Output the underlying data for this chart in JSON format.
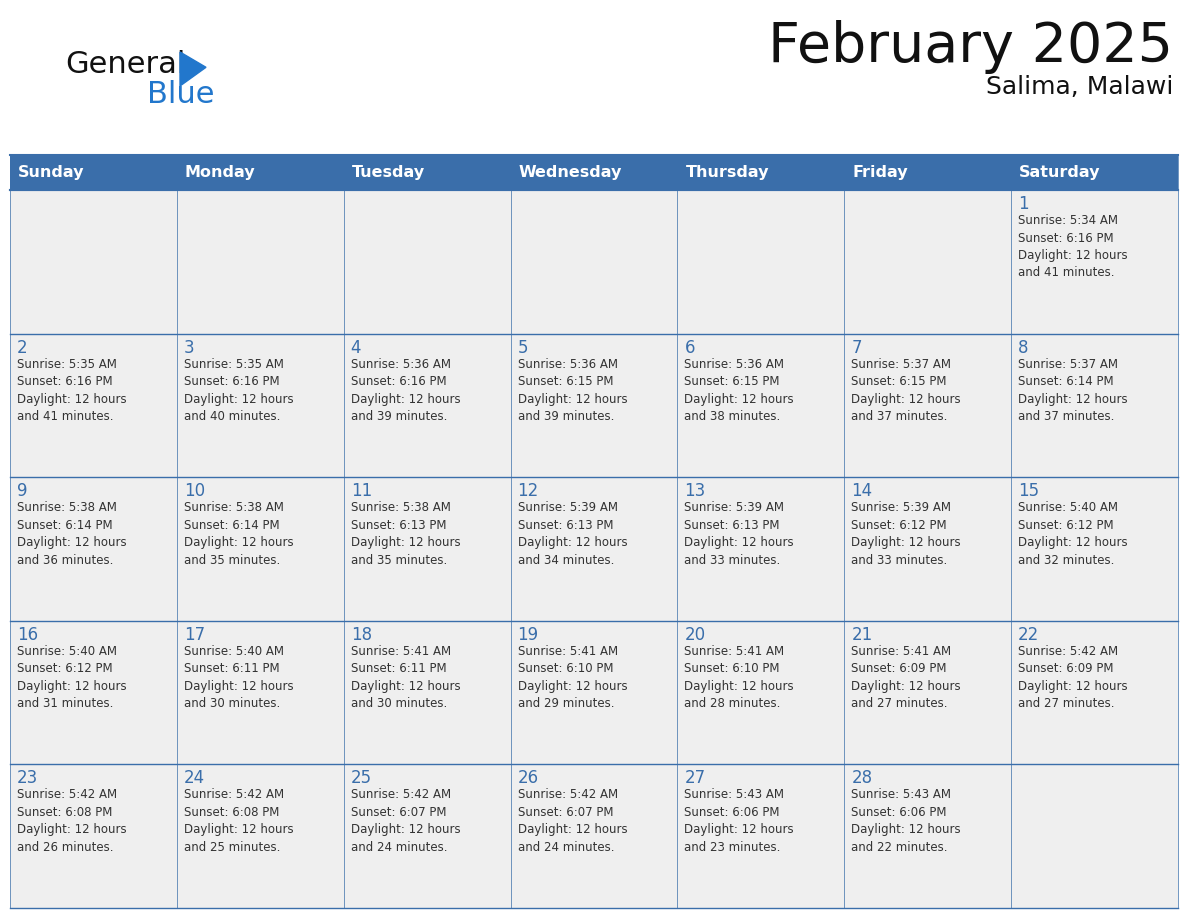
{
  "title": "February 2025",
  "subtitle": "Salima, Malawi",
  "days_of_week": [
    "Sunday",
    "Monday",
    "Tuesday",
    "Wednesday",
    "Thursday",
    "Friday",
    "Saturday"
  ],
  "header_bg": "#3A6EAA",
  "header_text": "#FFFFFF",
  "cell_bg": "#EFEFEF",
  "grid_line_color": "#3A6EAA",
  "day_number_color": "#3A6EAA",
  "text_color": "#333333",
  "title_color": "#111111",
  "logo_general_color": "#111111",
  "logo_blue_color": "#2277CC",
  "logo_triangle_color": "#2277CC",
  "weeks": [
    [
      {
        "day": null,
        "info": null
      },
      {
        "day": null,
        "info": null
      },
      {
        "day": null,
        "info": null
      },
      {
        "day": null,
        "info": null
      },
      {
        "day": null,
        "info": null
      },
      {
        "day": null,
        "info": null
      },
      {
        "day": 1,
        "info": "Sunrise: 5:34 AM\nSunset: 6:16 PM\nDaylight: 12 hours\nand 41 minutes."
      }
    ],
    [
      {
        "day": 2,
        "info": "Sunrise: 5:35 AM\nSunset: 6:16 PM\nDaylight: 12 hours\nand 41 minutes."
      },
      {
        "day": 3,
        "info": "Sunrise: 5:35 AM\nSunset: 6:16 PM\nDaylight: 12 hours\nand 40 minutes."
      },
      {
        "day": 4,
        "info": "Sunrise: 5:36 AM\nSunset: 6:16 PM\nDaylight: 12 hours\nand 39 minutes."
      },
      {
        "day": 5,
        "info": "Sunrise: 5:36 AM\nSunset: 6:15 PM\nDaylight: 12 hours\nand 39 minutes."
      },
      {
        "day": 6,
        "info": "Sunrise: 5:36 AM\nSunset: 6:15 PM\nDaylight: 12 hours\nand 38 minutes."
      },
      {
        "day": 7,
        "info": "Sunrise: 5:37 AM\nSunset: 6:15 PM\nDaylight: 12 hours\nand 37 minutes."
      },
      {
        "day": 8,
        "info": "Sunrise: 5:37 AM\nSunset: 6:14 PM\nDaylight: 12 hours\nand 37 minutes."
      }
    ],
    [
      {
        "day": 9,
        "info": "Sunrise: 5:38 AM\nSunset: 6:14 PM\nDaylight: 12 hours\nand 36 minutes."
      },
      {
        "day": 10,
        "info": "Sunrise: 5:38 AM\nSunset: 6:14 PM\nDaylight: 12 hours\nand 35 minutes."
      },
      {
        "day": 11,
        "info": "Sunrise: 5:38 AM\nSunset: 6:13 PM\nDaylight: 12 hours\nand 35 minutes."
      },
      {
        "day": 12,
        "info": "Sunrise: 5:39 AM\nSunset: 6:13 PM\nDaylight: 12 hours\nand 34 minutes."
      },
      {
        "day": 13,
        "info": "Sunrise: 5:39 AM\nSunset: 6:13 PM\nDaylight: 12 hours\nand 33 minutes."
      },
      {
        "day": 14,
        "info": "Sunrise: 5:39 AM\nSunset: 6:12 PM\nDaylight: 12 hours\nand 33 minutes."
      },
      {
        "day": 15,
        "info": "Sunrise: 5:40 AM\nSunset: 6:12 PM\nDaylight: 12 hours\nand 32 minutes."
      }
    ],
    [
      {
        "day": 16,
        "info": "Sunrise: 5:40 AM\nSunset: 6:12 PM\nDaylight: 12 hours\nand 31 minutes."
      },
      {
        "day": 17,
        "info": "Sunrise: 5:40 AM\nSunset: 6:11 PM\nDaylight: 12 hours\nand 30 minutes."
      },
      {
        "day": 18,
        "info": "Sunrise: 5:41 AM\nSunset: 6:11 PM\nDaylight: 12 hours\nand 30 minutes."
      },
      {
        "day": 19,
        "info": "Sunrise: 5:41 AM\nSunset: 6:10 PM\nDaylight: 12 hours\nand 29 minutes."
      },
      {
        "day": 20,
        "info": "Sunrise: 5:41 AM\nSunset: 6:10 PM\nDaylight: 12 hours\nand 28 minutes."
      },
      {
        "day": 21,
        "info": "Sunrise: 5:41 AM\nSunset: 6:09 PM\nDaylight: 12 hours\nand 27 minutes."
      },
      {
        "day": 22,
        "info": "Sunrise: 5:42 AM\nSunset: 6:09 PM\nDaylight: 12 hours\nand 27 minutes."
      }
    ],
    [
      {
        "day": 23,
        "info": "Sunrise: 5:42 AM\nSunset: 6:08 PM\nDaylight: 12 hours\nand 26 minutes."
      },
      {
        "day": 24,
        "info": "Sunrise: 5:42 AM\nSunset: 6:08 PM\nDaylight: 12 hours\nand 25 minutes."
      },
      {
        "day": 25,
        "info": "Sunrise: 5:42 AM\nSunset: 6:07 PM\nDaylight: 12 hours\nand 24 minutes."
      },
      {
        "day": 26,
        "info": "Sunrise: 5:42 AM\nSunset: 6:07 PM\nDaylight: 12 hours\nand 24 minutes."
      },
      {
        "day": 27,
        "info": "Sunrise: 5:43 AM\nSunset: 6:06 PM\nDaylight: 12 hours\nand 23 minutes."
      },
      {
        "day": 28,
        "info": "Sunrise: 5:43 AM\nSunset: 6:06 PM\nDaylight: 12 hours\nand 22 minutes."
      },
      {
        "day": null,
        "info": null
      }
    ]
  ]
}
